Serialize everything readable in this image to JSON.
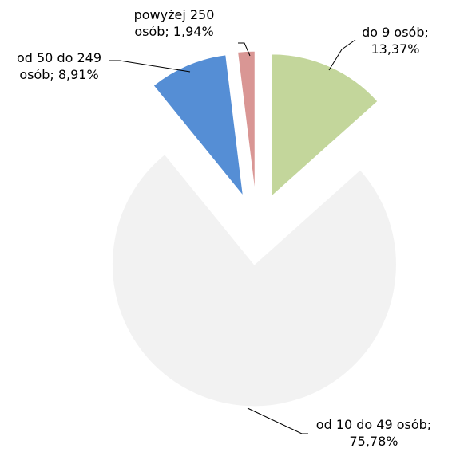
{
  "chart_data": {
    "type": "pie",
    "categories": [
      "do 9 osób",
      "od 10 do 49 osób",
      "od 50 do 249 osób",
      "powyżej 250 osób"
    ],
    "values": [
      13.37,
      75.78,
      8.91,
      1.94
    ],
    "value_labels": [
      "do 9 osób; 13,37%",
      "od 10 do 49 osób; 75,78%",
      "od 50 do 249 osób; 8,91%",
      "powyżej 250 osób; 1,94%"
    ],
    "colors": [
      "#c3d69b",
      "#f2f2f2",
      "#558ed5",
      "#d99694"
    ],
    "exploded": true
  }
}
